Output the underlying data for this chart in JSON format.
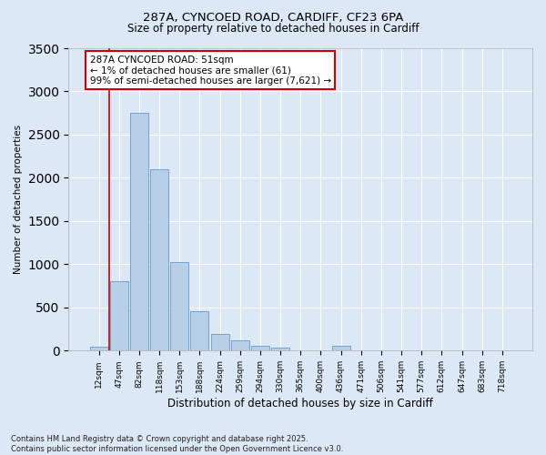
{
  "title_line1": "287A, CYNCOED ROAD, CARDIFF, CF23 6PA",
  "title_line2": "Size of property relative to detached houses in Cardiff",
  "xlabel": "Distribution of detached houses by size in Cardiff",
  "ylabel": "Number of detached properties",
  "categories": [
    "12sqm",
    "47sqm",
    "82sqm",
    "118sqm",
    "153sqm",
    "188sqm",
    "224sqm",
    "259sqm",
    "294sqm",
    "330sqm",
    "365sqm",
    "400sqm",
    "436sqm",
    "471sqm",
    "506sqm",
    "541sqm",
    "577sqm",
    "612sqm",
    "647sqm",
    "683sqm",
    "718sqm"
  ],
  "values": [
    50,
    800,
    2750,
    2100,
    1020,
    460,
    195,
    120,
    55,
    40,
    0,
    0,
    55,
    0,
    0,
    0,
    0,
    0,
    0,
    0,
    0
  ],
  "bar_color": "#b8cfe8",
  "bar_edge_color": "#6699cc",
  "red_line_x": 0.5,
  "highlight_line_color": "#cc0000",
  "ylim": [
    0,
    3500
  ],
  "yticks": [
    0,
    500,
    1000,
    1500,
    2000,
    2500,
    3000,
    3500
  ],
  "annotation_text": "287A CYNCOED ROAD: 51sqm\n← 1% of detached houses are smaller (61)\n99% of semi-detached houses are larger (7,621) →",
  "annotation_box_color": "#ffffff",
  "annotation_box_edge_color": "#cc0000",
  "footer_line1": "Contains HM Land Registry data © Crown copyright and database right 2025.",
  "footer_line2": "Contains public sector information licensed under the Open Government Licence v3.0.",
  "bg_color": "#dce8f5",
  "fig_bg_color": "#dce8f5"
}
